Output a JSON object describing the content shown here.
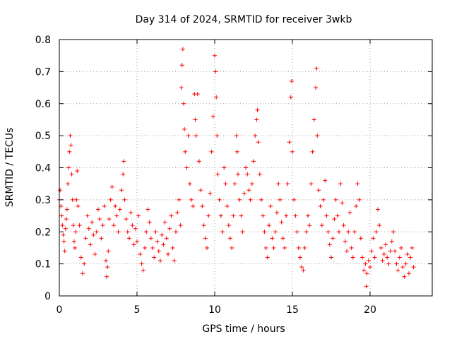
{
  "chart_data": {
    "type": "scatter",
    "title": "Day 314 of 2024, SRMTID for receiver 3wkb",
    "xlabel": "GPS time / hours",
    "ylabel": "SRMTID / TECUs",
    "xlim": [
      0,
      24
    ],
    "ylim": [
      0,
      0.8
    ],
    "xticks": [
      0,
      5,
      10,
      15,
      20
    ],
    "yticks": [
      0,
      0.1,
      0.2,
      0.3,
      0.4,
      0.5,
      0.6,
      0.7,
      0.8
    ],
    "xtick_labels": [
      "0",
      "5",
      "10",
      "15",
      "20"
    ],
    "ytick_labels": [
      "0",
      "0.1",
      "0.2",
      "0.3",
      "0.4",
      "0.5",
      "0.6",
      "0.7",
      "0.8"
    ],
    "grid": true,
    "marker": "plus",
    "color": "#ff0000",
    "series": [
      {
        "name": "SRMTID",
        "points": [
          [
            0.0,
            0.3
          ],
          [
            0.05,
            0.33
          ],
          [
            0.1,
            0.28
          ],
          [
            0.15,
            0.25
          ],
          [
            0.2,
            0.22
          ],
          [
            0.25,
            0.19
          ],
          [
            0.3,
            0.17
          ],
          [
            0.35,
            0.14
          ],
          [
            0.4,
            0.21
          ],
          [
            0.45,
            0.24
          ],
          [
            0.5,
            0.27
          ],
          [
            0.55,
            0.35
          ],
          [
            0.6,
            0.4
          ],
          [
            0.65,
            0.45
          ],
          [
            0.7,
            0.5
          ],
          [
            0.75,
            0.47
          ],
          [
            0.8,
            0.38
          ],
          [
            0.85,
            0.3
          ],
          [
            0.9,
            0.22
          ],
          [
            0.95,
            0.17
          ],
          [
            1.0,
            0.15
          ],
          [
            1.05,
            0.2
          ],
          [
            1.1,
            0.3
          ],
          [
            1.15,
            0.39
          ],
          [
            1.2,
            0.28
          ],
          [
            1.3,
            0.22
          ],
          [
            1.4,
            0.12
          ],
          [
            1.5,
            0.07
          ],
          [
            1.6,
            0.1
          ],
          [
            1.7,
            0.18
          ],
          [
            1.8,
            0.25
          ],
          [
            1.9,
            0.21
          ],
          [
            2.0,
            0.16
          ],
          [
            2.1,
            0.23
          ],
          [
            2.2,
            0.19
          ],
          [
            2.3,
            0.13
          ],
          [
            2.4,
            0.2
          ],
          [
            2.5,
            0.27
          ],
          [
            2.6,
            0.24
          ],
          [
            2.7,
            0.18
          ],
          [
            2.8,
            0.22
          ],
          [
            2.9,
            0.28
          ],
          [
            3.0,
            0.11
          ],
          [
            3.05,
            0.06
          ],
          [
            3.1,
            0.09
          ],
          [
            3.15,
            0.14
          ],
          [
            3.2,
            0.24
          ],
          [
            3.3,
            0.3
          ],
          [
            3.4,
            0.34
          ],
          [
            3.5,
            0.22
          ],
          [
            3.6,
            0.28
          ],
          [
            3.7,
            0.25
          ],
          [
            3.8,
            0.2
          ],
          [
            3.9,
            0.27
          ],
          [
            4.0,
            0.33
          ],
          [
            4.1,
            0.38
          ],
          [
            4.15,
            0.42
          ],
          [
            4.2,
            0.3
          ],
          [
            4.3,
            0.24
          ],
          [
            4.4,
            0.2
          ],
          [
            4.5,
            0.18
          ],
          [
            4.6,
            0.26
          ],
          [
            4.7,
            0.22
          ],
          [
            4.8,
            0.16
          ],
          [
            4.9,
            0.21
          ],
          [
            5.0,
            0.17
          ],
          [
            5.1,
            0.25
          ],
          [
            5.2,
            0.13
          ],
          [
            5.3,
            0.1
          ],
          [
            5.4,
            0.08
          ],
          [
            5.5,
            0.15
          ],
          [
            5.6,
            0.2
          ],
          [
            5.7,
            0.27
          ],
          [
            5.8,
            0.23
          ],
          [
            5.9,
            0.18
          ],
          [
            6.0,
            0.15
          ],
          [
            6.1,
            0.12
          ],
          [
            6.2,
            0.2
          ],
          [
            6.3,
            0.17
          ],
          [
            6.4,
            0.14
          ],
          [
            6.5,
            0.11
          ],
          [
            6.6,
            0.19
          ],
          [
            6.7,
            0.16
          ],
          [
            6.8,
            0.23
          ],
          [
            6.9,
            0.18
          ],
          [
            7.0,
            0.13
          ],
          [
            7.1,
            0.21
          ],
          [
            7.2,
            0.25
          ],
          [
            7.3,
            0.15
          ],
          [
            7.4,
            0.11
          ],
          [
            7.5,
            0.2
          ],
          [
            7.6,
            0.26
          ],
          [
            7.7,
            0.3
          ],
          [
            7.8,
            0.22
          ],
          [
            7.85,
            0.65
          ],
          [
            7.9,
            0.72
          ],
          [
            7.95,
            0.77
          ],
          [
            8.0,
            0.6
          ],
          [
            8.05,
            0.52
          ],
          [
            8.1,
            0.45
          ],
          [
            8.2,
            0.4
          ],
          [
            8.3,
            0.5
          ],
          [
            8.4,
            0.35
          ],
          [
            8.5,
            0.3
          ],
          [
            8.6,
            0.28
          ],
          [
            8.7,
            0.63
          ],
          [
            8.75,
            0.55
          ],
          [
            8.8,
            0.5
          ],
          [
            8.9,
            0.63
          ],
          [
            9.0,
            0.42
          ],
          [
            9.1,
            0.33
          ],
          [
            9.2,
            0.28
          ],
          [
            9.3,
            0.22
          ],
          [
            9.4,
            0.18
          ],
          [
            9.5,
            0.15
          ],
          [
            9.6,
            0.25
          ],
          [
            9.7,
            0.32
          ],
          [
            9.8,
            0.45
          ],
          [
            9.9,
            0.56
          ],
          [
            10.0,
            0.75
          ],
          [
            10.05,
            0.7
          ],
          [
            10.1,
            0.62
          ],
          [
            10.15,
            0.5
          ],
          [
            10.2,
            0.38
          ],
          [
            10.3,
            0.3
          ],
          [
            10.4,
            0.25
          ],
          [
            10.5,
            0.2
          ],
          [
            10.6,
            0.4
          ],
          [
            10.7,
            0.35
          ],
          [
            10.8,
            0.28
          ],
          [
            10.9,
            0.22
          ],
          [
            11.0,
            0.18
          ],
          [
            11.1,
            0.15
          ],
          [
            11.2,
            0.25
          ],
          [
            11.3,
            0.35
          ],
          [
            11.4,
            0.5
          ],
          [
            11.45,
            0.45
          ],
          [
            11.5,
            0.38
          ],
          [
            11.6,
            0.3
          ],
          [
            11.7,
            0.25
          ],
          [
            11.8,
            0.2
          ],
          [
            11.9,
            0.32
          ],
          [
            12.0,
            0.4
          ],
          [
            12.1,
            0.38
          ],
          [
            12.2,
            0.33
          ],
          [
            12.3,
            0.3
          ],
          [
            12.4,
            0.35
          ],
          [
            12.5,
            0.42
          ],
          [
            12.6,
            0.5
          ],
          [
            12.7,
            0.55
          ],
          [
            12.75,
            0.58
          ],
          [
            12.8,
            0.48
          ],
          [
            12.9,
            0.38
          ],
          [
            13.0,
            0.3
          ],
          [
            13.1,
            0.25
          ],
          [
            13.2,
            0.2
          ],
          [
            13.3,
            0.15
          ],
          [
            13.4,
            0.12
          ],
          [
            13.5,
            0.22
          ],
          [
            13.6,
            0.28
          ],
          [
            13.7,
            0.18
          ],
          [
            13.8,
            0.15
          ],
          [
            13.9,
            0.2
          ],
          [
            14.0,
            0.26
          ],
          [
            14.1,
            0.35
          ],
          [
            14.2,
            0.3
          ],
          [
            14.3,
            0.23
          ],
          [
            14.4,
            0.18
          ],
          [
            14.5,
            0.15
          ],
          [
            14.6,
            0.25
          ],
          [
            14.7,
            0.35
          ],
          [
            14.8,
            0.48
          ],
          [
            14.9,
            0.62
          ],
          [
            14.95,
            0.67
          ],
          [
            15.0,
            0.45
          ],
          [
            15.1,
            0.3
          ],
          [
            15.2,
            0.25
          ],
          [
            15.3,
            0.2
          ],
          [
            15.4,
            0.15
          ],
          [
            15.5,
            0.12
          ],
          [
            15.6,
            0.09
          ],
          [
            15.7,
            0.08
          ],
          [
            15.8,
            0.15
          ],
          [
            15.9,
            0.2
          ],
          [
            16.0,
            0.25
          ],
          [
            16.1,
            0.22
          ],
          [
            16.2,
            0.35
          ],
          [
            16.3,
            0.45
          ],
          [
            16.4,
            0.55
          ],
          [
            16.5,
            0.65
          ],
          [
            16.55,
            0.71
          ],
          [
            16.6,
            0.5
          ],
          [
            16.7,
            0.33
          ],
          [
            16.8,
            0.28
          ],
          [
            16.9,
            0.22
          ],
          [
            17.0,
            0.3
          ],
          [
            17.1,
            0.36
          ],
          [
            17.2,
            0.25
          ],
          [
            17.3,
            0.2
          ],
          [
            17.4,
            0.16
          ],
          [
            17.5,
            0.12
          ],
          [
            17.6,
            0.18
          ],
          [
            17.7,
            0.24
          ],
          [
            17.8,
            0.3
          ],
          [
            17.9,
            0.25
          ],
          [
            18.0,
            0.2
          ],
          [
            18.1,
            0.35
          ],
          [
            18.2,
            0.29
          ],
          [
            18.3,
            0.22
          ],
          [
            18.4,
            0.17
          ],
          [
            18.5,
            0.14
          ],
          [
            18.6,
            0.2
          ],
          [
            18.7,
            0.26
          ],
          [
            18.8,
            0.15
          ],
          [
            18.9,
            0.12
          ],
          [
            19.0,
            0.2
          ],
          [
            19.1,
            0.28
          ],
          [
            19.2,
            0.35
          ],
          [
            19.3,
            0.3
          ],
          [
            19.4,
            0.18
          ],
          [
            19.5,
            0.12
          ],
          [
            19.6,
            0.08
          ],
          [
            19.7,
            0.1
          ],
          [
            19.75,
            0.03
          ],
          [
            19.8,
            0.07
          ],
          [
            19.9,
            0.11
          ],
          [
            20.0,
            0.09
          ],
          [
            20.1,
            0.14
          ],
          [
            20.2,
            0.18
          ],
          [
            20.3,
            0.12
          ],
          [
            20.4,
            0.2
          ],
          [
            20.5,
            0.27
          ],
          [
            20.6,
            0.22
          ],
          [
            20.7,
            0.15
          ],
          [
            20.8,
            0.11
          ],
          [
            20.9,
            0.13
          ],
          [
            21.0,
            0.16
          ],
          [
            21.1,
            0.12
          ],
          [
            21.2,
            0.1
          ],
          [
            21.3,
            0.14
          ],
          [
            21.4,
            0.17
          ],
          [
            21.5,
            0.2
          ],
          [
            21.6,
            0.14
          ],
          [
            21.7,
            0.1
          ],
          [
            21.8,
            0.08
          ],
          [
            21.9,
            0.12
          ],
          [
            22.0,
            0.15
          ],
          [
            22.1,
            0.09
          ],
          [
            22.2,
            0.06
          ],
          [
            22.3,
            0.1
          ],
          [
            22.4,
            0.13
          ],
          [
            22.5,
            0.07
          ],
          [
            22.6,
            0.12
          ],
          [
            22.7,
            0.15
          ],
          [
            22.8,
            0.09
          ]
        ]
      }
    ]
  }
}
